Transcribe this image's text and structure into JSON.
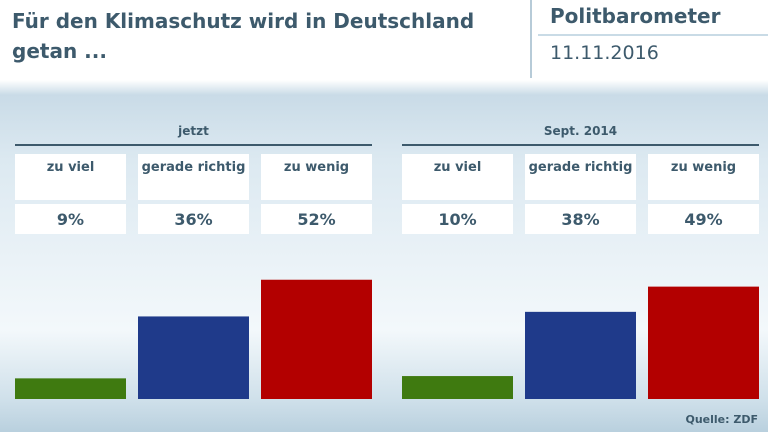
{
  "header": {
    "title": "Für den Klimaschutz wird in Deutschland getan ...",
    "brand": "Politbarometer",
    "date": "11.11.2016"
  },
  "colors": {
    "zu_viel": "#3f7a10",
    "gerade_richtig": "#1f3a8a",
    "zu_wenig": "#b30000",
    "text": "#3d5a6c"
  },
  "source": "Quelle: ZDF",
  "chart_data": {
    "type": "bar",
    "title": "Für den Klimaschutz wird in Deutschland getan ...",
    "categories": [
      "zu viel",
      "gerade richtig",
      "zu wenig"
    ],
    "unit": "%",
    "ylim": [
      0,
      60
    ],
    "groups": [
      {
        "name": "jetzt",
        "values": [
          9,
          36,
          52
        ],
        "value_labels": [
          "9%",
          "36%",
          "52%"
        ]
      },
      {
        "name": "Sept. 2014",
        "values": [
          10,
          38,
          49
        ],
        "value_labels": [
          "10%",
          "38%",
          "49%"
        ]
      }
    ]
  }
}
